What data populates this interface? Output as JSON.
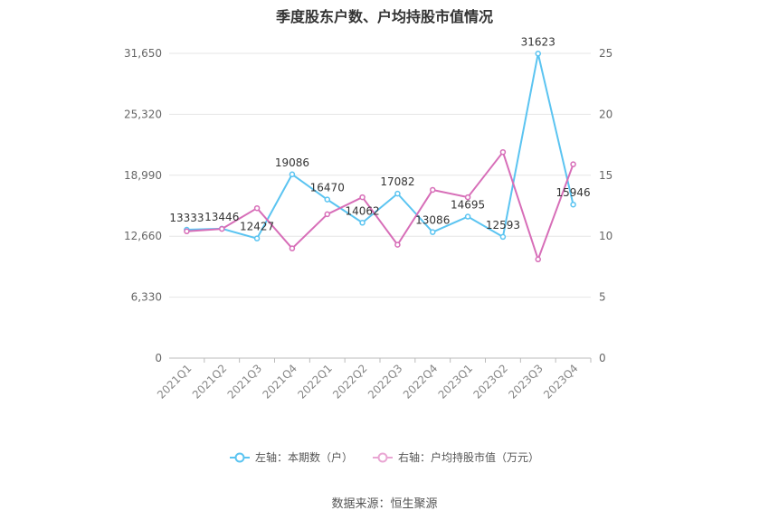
{
  "chart_data": {
    "type": "line",
    "title": "季度股东户数、户均持股市值情况",
    "categories": [
      "2021Q1",
      "2021Q2",
      "2021Q3",
      "2021Q4",
      "2022Q1",
      "2022Q2",
      "2022Q3",
      "2022Q4",
      "2023Q1",
      "2023Q2",
      "2023Q3",
      "2023Q4"
    ],
    "y_left": {
      "ticks": [
        "0",
        "6,330",
        "12,660",
        "18,990",
        "25,320",
        "31,650"
      ],
      "range": [
        0,
        31650
      ]
    },
    "y_right": {
      "ticks": [
        "0",
        "5",
        "10",
        "15",
        "20",
        "25"
      ],
      "range": [
        0,
        25
      ]
    },
    "series": [
      {
        "name": "左轴：本期数（户）",
        "axis": "left",
        "color": "#5bc4f1",
        "values": [
          13333,
          13446,
          12427,
          19086,
          16470,
          14062,
          17082,
          13086,
          14695,
          12593,
          31623,
          15946
        ],
        "labels": [
          "13333",
          "13446",
          "12427",
          "19086",
          "16470",
          "14062",
          "17082",
          "13086",
          "14695",
          "12593",
          "31623",
          "15946"
        ]
      },
      {
        "name": "右轴：户均持股市值（万元）",
        "axis": "right",
        "color": "#d76eb8",
        "values": [
          10.4,
          10.6,
          12.3,
          9.0,
          11.8,
          13.2,
          9.3,
          13.8,
          13.2,
          16.9,
          8.1,
          15.9
        ]
      }
    ],
    "legend_position": "bottom",
    "grid": true
  },
  "footer": {
    "source": "数据来源：恒生聚源"
  }
}
